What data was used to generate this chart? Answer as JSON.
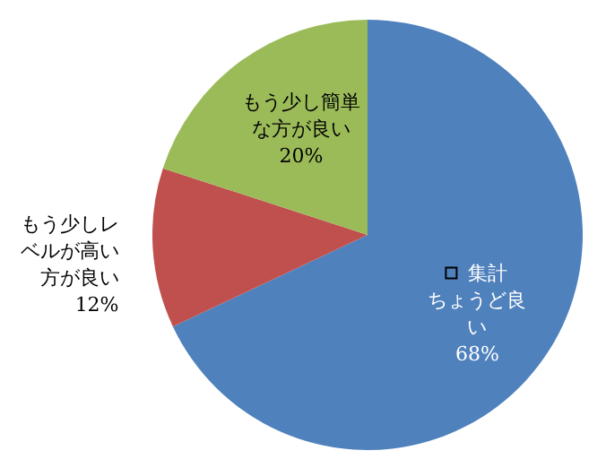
{
  "chart_data": {
    "type": "pie",
    "categories": [
      "ちょうど良い",
      "もう少しレベルが高い方が良い",
      "もう少し簡単な方が良い"
    ],
    "series": [
      {
        "name": "集計",
        "values": [
          68,
          12,
          20
        ]
      }
    ],
    "colors": [
      "#4f81bd",
      "#c0504d",
      "#9bbb59"
    ],
    "value_labels": [
      "68%",
      "12%",
      "20%"
    ]
  }
}
